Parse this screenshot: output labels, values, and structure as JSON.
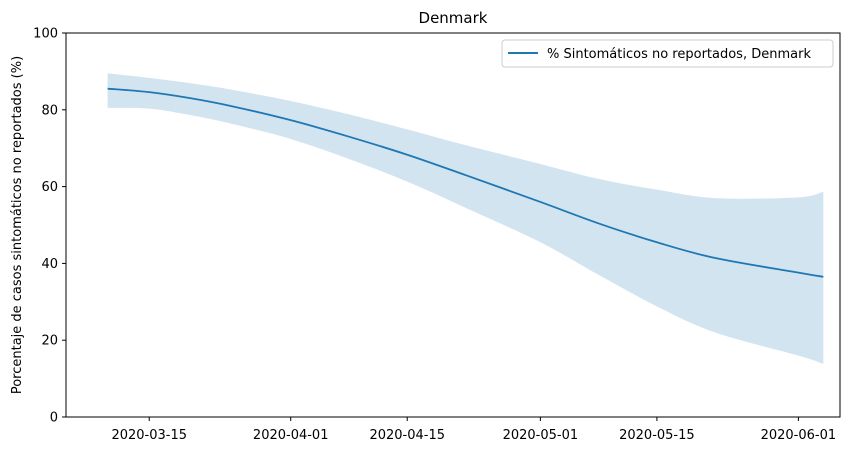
{
  "chart_data": {
    "type": "line",
    "title": "Denmark",
    "xlabel": "",
    "ylabel": "Porcentaje de casos sintomáticos no reportados (%)",
    "ylim": [
      0,
      100
    ],
    "xlim": [
      "2020-03-05",
      "2020-06-06"
    ],
    "x_ticks": [
      "2020-03-15",
      "2020-04-01",
      "2020-04-15",
      "2020-05-01",
      "2020-05-15",
      "2020-06-01"
    ],
    "y_ticks": [
      0,
      20,
      40,
      60,
      80,
      100
    ],
    "grid": false,
    "legend_position": "top-right",
    "series": [
      {
        "name": "% Sintomáticos no reportados, Denmark",
        "color": "#1f77b4",
        "band_color": "#1f77b4",
        "x": [
          "2020-03-10",
          "2020-03-15",
          "2020-03-20",
          "2020-03-25",
          "2020-04-01",
          "2020-04-08",
          "2020-04-15",
          "2020-04-22",
          "2020-05-01",
          "2020-05-08",
          "2020-05-15",
          "2020-05-22",
          "2020-06-01",
          "2020-06-04"
        ],
        "y": [
          85.5,
          84.6,
          83.0,
          80.9,
          77.3,
          73.0,
          68.3,
          63.0,
          56.0,
          50.4,
          45.5,
          41.4,
          37.6,
          36.5
        ],
        "lower": [
          80.5,
          80.3,
          78.6,
          76.3,
          72.4,
          67.2,
          61.3,
          54.5,
          45.5,
          37.0,
          28.8,
          22.0,
          16.0,
          13.8
        ],
        "upper": [
          89.5,
          88.3,
          86.9,
          85.2,
          82.3,
          78.8,
          74.9,
          70.8,
          65.9,
          62.0,
          59.2,
          57.0,
          57.2,
          58.7
        ]
      }
    ]
  }
}
